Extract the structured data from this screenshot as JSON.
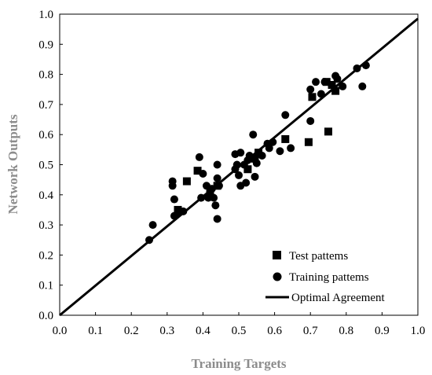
{
  "chart_data": {
    "type": "scatter",
    "xlabel": "Training Targets",
    "ylabel": "Network Outputs",
    "xlim": [
      0,
      1
    ],
    "ylim": [
      0,
      1
    ],
    "xticks": [
      "0.0",
      "0.1",
      "0.2",
      "0.3",
      "0.4",
      "0.5",
      "0.6",
      "0.7",
      "0.8",
      "0.9",
      "1.0"
    ],
    "yticks": [
      "0.0",
      "0.1",
      "0.2",
      "0.3",
      "0.4",
      "0.5",
      "0.6",
      "0.7",
      "0.8",
      "0.9",
      "1.0"
    ],
    "grid": false,
    "legend_position": "bottom-right",
    "series": [
      {
        "name": "Test patterns",
        "marker": "square",
        "points": [
          [
            0.33,
            0.35
          ],
          [
            0.355,
            0.445
          ],
          [
            0.385,
            0.48
          ],
          [
            0.42,
            0.4
          ],
          [
            0.44,
            0.43
          ],
          [
            0.525,
            0.485
          ],
          [
            0.545,
            0.52
          ],
          [
            0.555,
            0.54
          ],
          [
            0.63,
            0.585
          ],
          [
            0.695,
            0.575
          ],
          [
            0.705,
            0.725
          ],
          [
            0.745,
            0.775
          ],
          [
            0.75,
            0.61
          ],
          [
            0.76,
            0.765
          ],
          [
            0.77,
            0.745
          ]
        ]
      },
      {
        "name": "Training patterns",
        "marker": "circle",
        "points": [
          [
            0.25,
            0.25
          ],
          [
            0.26,
            0.3
          ],
          [
            0.315,
            0.43
          ],
          [
            0.315,
            0.445
          ],
          [
            0.32,
            0.385
          ],
          [
            0.32,
            0.33
          ],
          [
            0.33,
            0.34
          ],
          [
            0.345,
            0.345
          ],
          [
            0.39,
            0.525
          ],
          [
            0.395,
            0.39
          ],
          [
            0.4,
            0.47
          ],
          [
            0.41,
            0.43
          ],
          [
            0.415,
            0.39
          ],
          [
            0.42,
            0.415
          ],
          [
            0.425,
            0.42
          ],
          [
            0.43,
            0.39
          ],
          [
            0.435,
            0.365
          ],
          [
            0.44,
            0.5
          ],
          [
            0.44,
            0.455
          ],
          [
            0.44,
            0.32
          ],
          [
            0.445,
            0.43
          ],
          [
            0.49,
            0.485
          ],
          [
            0.49,
            0.535
          ],
          [
            0.495,
            0.5
          ],
          [
            0.5,
            0.465
          ],
          [
            0.505,
            0.43
          ],
          [
            0.505,
            0.54
          ],
          [
            0.515,
            0.5
          ],
          [
            0.52,
            0.44
          ],
          [
            0.525,
            0.515
          ],
          [
            0.53,
            0.53
          ],
          [
            0.54,
            0.6
          ],
          [
            0.545,
            0.46
          ],
          [
            0.55,
            0.505
          ],
          [
            0.565,
            0.53
          ],
          [
            0.58,
            0.57
          ],
          [
            0.585,
            0.555
          ],
          [
            0.595,
            0.575
          ],
          [
            0.615,
            0.545
          ],
          [
            0.63,
            0.665
          ],
          [
            0.645,
            0.555
          ],
          [
            0.7,
            0.75
          ],
          [
            0.7,
            0.645
          ],
          [
            0.715,
            0.775
          ],
          [
            0.73,
            0.735
          ],
          [
            0.74,
            0.775
          ],
          [
            0.77,
            0.795
          ],
          [
            0.775,
            0.785
          ],
          [
            0.79,
            0.76
          ],
          [
            0.83,
            0.82
          ],
          [
            0.845,
            0.76
          ],
          [
            0.855,
            0.83
          ]
        ]
      }
    ],
    "lines": [
      {
        "name": "Optimal Agreement",
        "x": [
          0,
          1
        ],
        "y": [
          0,
          0.985
        ]
      }
    ],
    "legend": [
      "Test pattems",
      "Training pattems",
      "Optimal Agreement"
    ]
  }
}
